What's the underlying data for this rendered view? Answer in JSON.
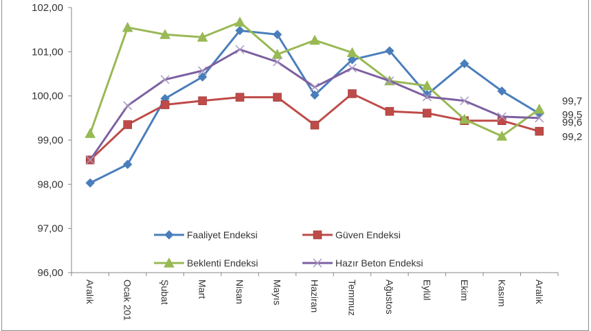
{
  "chart_data": {
    "type": "line",
    "title": "",
    "xlabel": "",
    "ylabel": "",
    "ylim": [
      96,
      102
    ],
    "yticks": [
      "96,00",
      "97,00",
      "98,00",
      "99,00",
      "100,00",
      "101,00",
      "102,00"
    ],
    "grid": false,
    "legend_position": "inside-bottom",
    "categories": [
      "Aralık",
      "Ocak 201",
      "Şubat",
      "Mart",
      "Nisan",
      "Mayıs",
      "Haziran",
      "Temmuz",
      "Ağustos",
      "Eylül",
      "Ekim",
      "Kasım",
      "Aralık"
    ],
    "series": [
      {
        "name": "Faaliyet Endeksi",
        "color": "#4a7ebb",
        "marker": "diamond",
        "values": [
          98.03,
          98.45,
          99.94,
          100.43,
          101.48,
          101.39,
          100.02,
          100.82,
          101.02,
          100.03,
          100.73,
          100.11,
          99.6
        ]
      },
      {
        "name": "Güven Endeksi",
        "color": "#be4b48",
        "marker": "square",
        "values": [
          98.55,
          99.35,
          99.8,
          99.89,
          99.97,
          99.97,
          99.34,
          100.05,
          99.65,
          99.61,
          99.44,
          99.44,
          99.2
        ]
      },
      {
        "name": "Beklenti Endeksi",
        "color": "#98b954",
        "marker": "triangle",
        "values": [
          99.15,
          101.55,
          101.39,
          101.33,
          101.67,
          100.94,
          101.26,
          100.98,
          100.34,
          100.23,
          99.47,
          99.09,
          99.7
        ]
      },
      {
        "name": "Hazır Beton Endeksi",
        "color": "#7d5fa0",
        "marker": "x",
        "values": [
          98.55,
          99.78,
          100.37,
          100.57,
          101.05,
          100.77,
          100.2,
          100.63,
          100.34,
          99.98,
          99.89,
          99.53,
          99.5
        ]
      }
    ],
    "end_labels": [
      {
        "series": "Beklenti Endeksi",
        "text": "99,7"
      },
      {
        "series": "Hazır Beton Endeksi",
        "text": "99,5"
      },
      {
        "series": "Faaliyet Endeksi",
        "text": "99,6"
      },
      {
        "series": "Güven Endeksi",
        "text": "99,2"
      }
    ]
  }
}
